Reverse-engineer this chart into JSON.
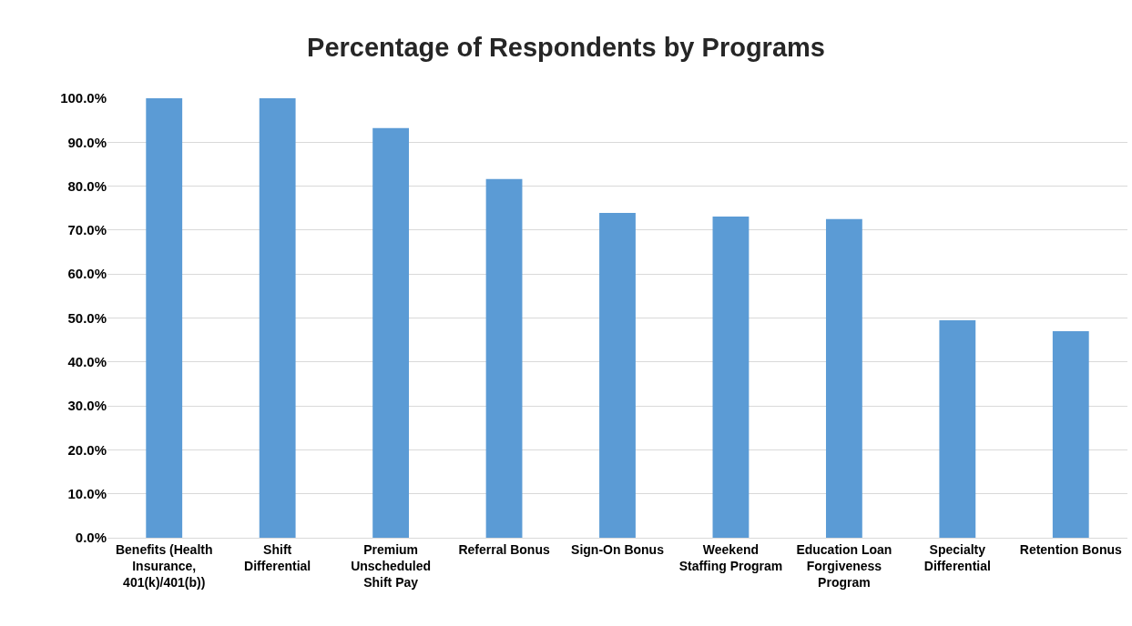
{
  "chart_data": {
    "type": "bar",
    "title": "Percentage of Respondents by Programs",
    "categories": [
      "Benefits (Health\nInsurance,\n401(k)/401(b))",
      "Shift\nDifferential",
      "Premium\nUnscheduled\nShift Pay",
      "Referral Bonus",
      "Sign-On Bonus",
      "Weekend\nStaffing Program",
      "Education Loan\nForgiveness\nProgram",
      "Specialty\nDifferential",
      "Retention Bonus"
    ],
    "values": [
      100,
      100,
      93.2,
      81.6,
      73.9,
      73.1,
      72.5,
      49.5,
      47.0
    ],
    "color": "#5b9bd5",
    "ylim": [
      0,
      100
    ],
    "yticks": [
      {
        "value": 0,
        "label": "0.0%"
      },
      {
        "value": 10,
        "label": "10.0%"
      },
      {
        "value": 20,
        "label": "20.0%"
      },
      {
        "value": 30,
        "label": "30.0%"
      },
      {
        "value": 40,
        "label": "40.0%"
      },
      {
        "value": 50,
        "label": "50.0%"
      },
      {
        "value": 60,
        "label": "60.0%"
      },
      {
        "value": 70,
        "label": "70.0%"
      },
      {
        "value": 80,
        "label": "80.0%"
      },
      {
        "value": 90,
        "label": "90.0%"
      },
      {
        "value": 100,
        "label": "100.0%"
      }
    ],
    "grid": "y"
  }
}
